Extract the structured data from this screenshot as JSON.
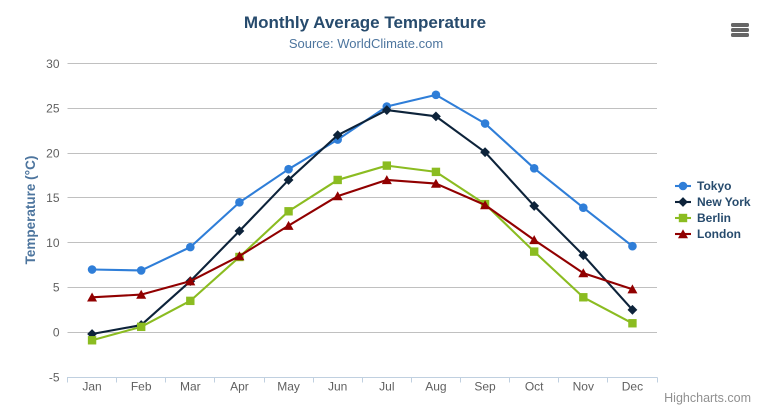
{
  "chart": {
    "credits_label": "Highcharts.com",
    "menu_icon": "hamburger-icon"
  },
  "chart_data": {
    "type": "line",
    "title": "Monthly Average Temperature",
    "subtitle": "Source: WorldClimate.com",
    "xlabel": "",
    "ylabel": "Temperature (°C)",
    "categories": [
      "Jan",
      "Feb",
      "Mar",
      "Apr",
      "May",
      "Jun",
      "Jul",
      "Aug",
      "Sep",
      "Oct",
      "Nov",
      "Dec"
    ],
    "series": [
      {
        "name": "Tokyo",
        "color": "#2f7ed8",
        "marker": "circle",
        "values": [
          7.0,
          6.9,
          9.5,
          14.5,
          18.2,
          21.5,
          25.2,
          26.5,
          23.3,
          18.3,
          13.9,
          9.6
        ]
      },
      {
        "name": "New York",
        "color": "#0d233a",
        "marker": "diamond",
        "values": [
          -0.2,
          0.8,
          5.7,
          11.3,
          17.0,
          22.0,
          24.8,
          24.1,
          20.1,
          14.1,
          8.6,
          2.5
        ]
      },
      {
        "name": "Berlin",
        "color": "#8bbc21",
        "marker": "square",
        "values": [
          -0.9,
          0.6,
          3.5,
          8.4,
          13.5,
          17.0,
          18.6,
          17.9,
          14.3,
          9.0,
          3.9,
          1.0
        ]
      },
      {
        "name": "London",
        "color": "#910000",
        "marker": "triangle",
        "values": [
          3.9,
          4.2,
          5.7,
          8.5,
          11.9,
          15.2,
          17.0,
          16.6,
          14.2,
          10.3,
          6.6,
          4.8
        ]
      }
    ],
    "ylim": [
      -5,
      30
    ],
    "ytick_interval": 5,
    "yticks": [
      -5,
      0,
      5,
      10,
      15,
      20,
      25,
      30
    ],
    "grid": true,
    "legend_position": "right",
    "colors": {
      "title": "#274b6d",
      "subtitle": "#4d759e",
      "axis_label": "#606060",
      "grid_line": "#c0c0c0",
      "axis_line": "#c0d0e0",
      "legend_text": "#274b6d",
      "credits": "#909090",
      "menu": "#666666"
    }
  }
}
